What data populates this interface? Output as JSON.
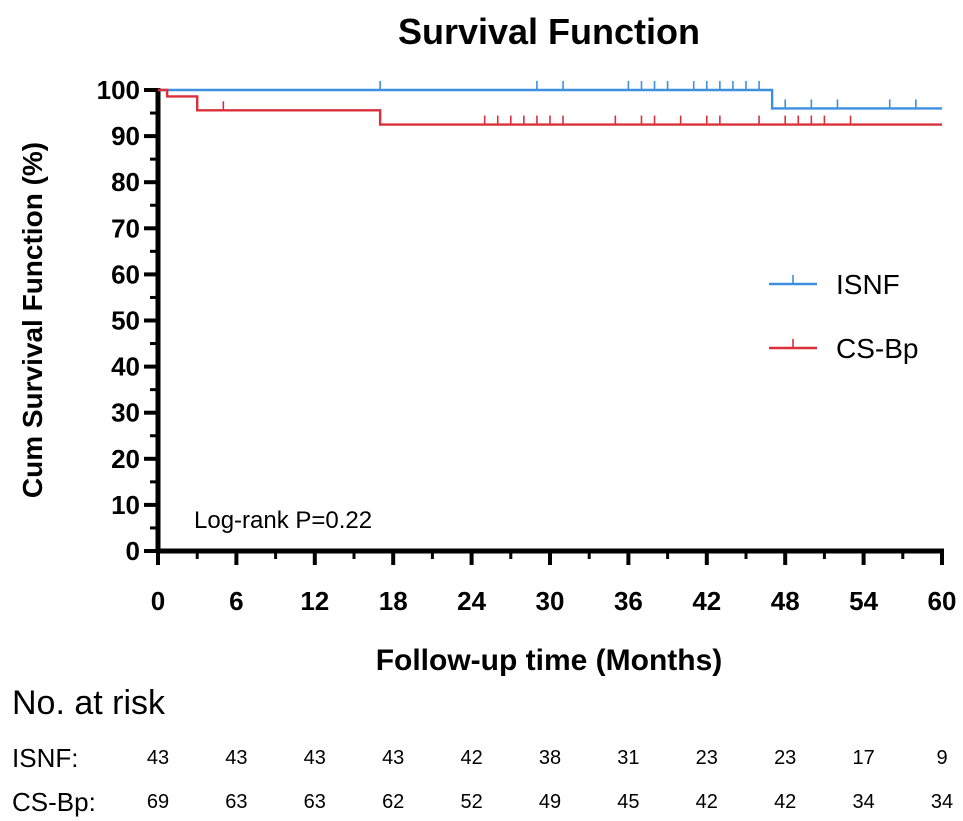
{
  "chart_data": {
    "type": "line",
    "title": "Survival Function",
    "xlabel": "Follow-up time (Months)",
    "ylabel": "Cum Survival Function (%)",
    "xlim": [
      0,
      60
    ],
    "ylim": [
      0,
      100
    ],
    "x_ticks": [
      0,
      6,
      12,
      18,
      24,
      30,
      36,
      42,
      48,
      54,
      60
    ],
    "y_ticks": [
      0,
      10,
      20,
      30,
      40,
      50,
      60,
      70,
      80,
      90,
      100
    ],
    "grid": false,
    "legend_position": "right",
    "annotation": "Log-rank P=0.22",
    "series": [
      {
        "name": "ISNF",
        "color": "#3d8fe0",
        "steps": [
          [
            0,
            100
          ],
          [
            47,
            96
          ]
        ],
        "censor_x": [
          17,
          29,
          31,
          36,
          37,
          38,
          39,
          41,
          42,
          43,
          44,
          45,
          46,
          48,
          50,
          52,
          56,
          58
        ],
        "censor_y": [
          100,
          100,
          100,
          100,
          100,
          100,
          100,
          100,
          100,
          100,
          100,
          100,
          100,
          96,
          96,
          96,
          96,
          96
        ]
      },
      {
        "name": "CS-Bp",
        "color": "#d9303b",
        "steps": [
          [
            0,
            100
          ],
          [
            0.7,
            98.6
          ],
          [
            3,
            95.6
          ],
          [
            17,
            92.5
          ]
        ],
        "censor_x": [
          5,
          25,
          26,
          27,
          28,
          29,
          30,
          31,
          35,
          37,
          38,
          40,
          42,
          43,
          46,
          48,
          49,
          50,
          51,
          53
        ],
        "censor_y": [
          95.6,
          92.5,
          92.5,
          92.5,
          92.5,
          92.5,
          92.5,
          92.5,
          92.5,
          92.5,
          92.5,
          92.5,
          92.5,
          92.5,
          92.5,
          92.5,
          92.5,
          92.5,
          92.5,
          92.5
        ]
      }
    ],
    "risk_table": {
      "heading": "No. at risk",
      "rows": [
        {
          "label": "ISNF:",
          "values": [
            "43",
            "43",
            "43",
            "43",
            "42",
            "38",
            "31",
            "23",
            "23",
            "17",
            "9"
          ]
        },
        {
          "label": "CS-Bp:",
          "values": [
            "69",
            "63",
            "63",
            "62",
            "52",
            "49",
            "45",
            "42",
            "42",
            "34",
            "34"
          ]
        }
      ]
    }
  }
}
